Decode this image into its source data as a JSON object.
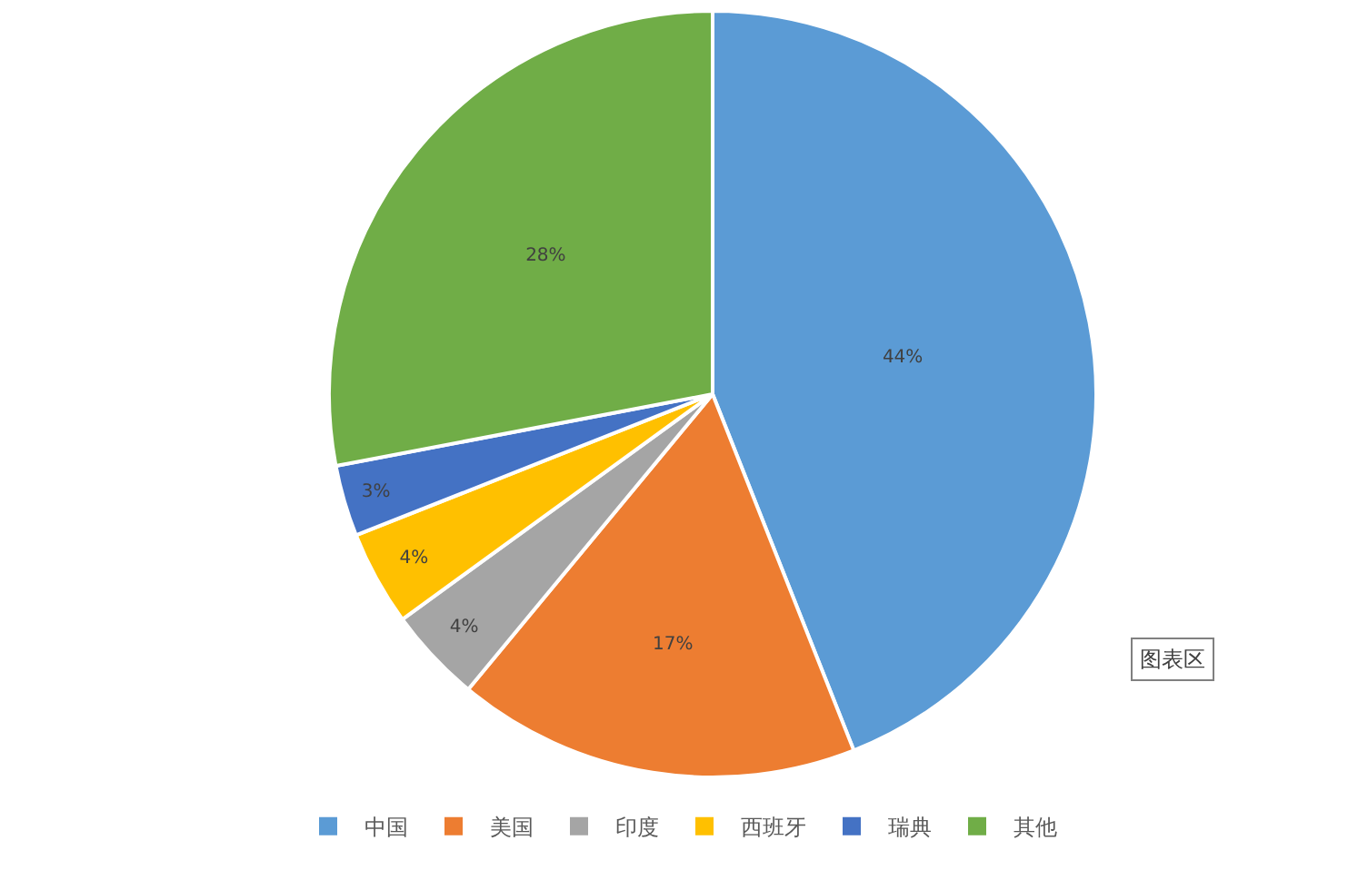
{
  "chart_data": {
    "type": "pie",
    "categories": [
      "中国",
      "美国",
      "印度",
      "西班牙",
      "瑞典",
      "其他"
    ],
    "values": [
      44,
      17,
      4,
      4,
      3,
      28
    ],
    "colors": [
      "#5b9bd5",
      "#ed7d31",
      "#a5a5a5",
      "#ffc000",
      "#4472c4",
      "#70ad47"
    ],
    "value_labels": [
      "44%",
      "17%",
      "4%",
      "4%",
      "3%",
      "28%"
    ],
    "legend": "bottom",
    "annotations": [
      "图表区"
    ]
  }
}
